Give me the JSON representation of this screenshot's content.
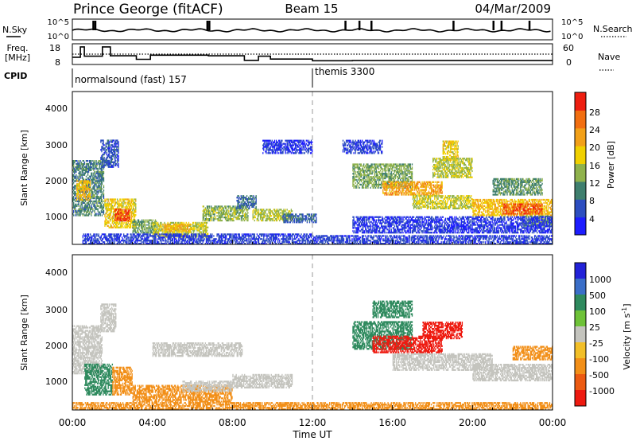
{
  "header": {
    "station": "Prince George (fitACF)",
    "beam": "Beam 15",
    "date": "04/Mar/2009"
  },
  "aux_panels": {
    "nsky": {
      "left_label": "N.Sky",
      "right_label": "N.Search",
      "left_ticks": [
        "10^5",
        "10^0"
      ],
      "right_ticks": [
        "10^5",
        "10^0"
      ],
      "baseline_log": 0.3,
      "spike_times_h": [
        1.0,
        1.1,
        6.7,
        6.8,
        13.6,
        14.3,
        14.9,
        19.0,
        21.0,
        21.4,
        22.8
      ]
    },
    "freq": {
      "left_label_line1": "Freq.",
      "left_label_line2": "[MHz]",
      "right_label": "Nave",
      "left_ticks": [
        "18",
        "8"
      ],
      "right_ticks": [
        "60",
        "0"
      ],
      "ylim_mhz": [
        8,
        18
      ],
      "freq_steps": [
        {
          "t": 0.0,
          "v": 11.5
        },
        {
          "t": 0.4,
          "v": 16.5
        },
        {
          "t": 0.6,
          "v": 12.0
        },
        {
          "t": 1.5,
          "v": 16.5
        },
        {
          "t": 1.9,
          "v": 12.2
        },
        {
          "t": 3.2,
          "v": 10.5
        },
        {
          "t": 3.9,
          "v": 12.5
        },
        {
          "t": 6.8,
          "v": 12.2
        },
        {
          "t": 8.6,
          "v": 10.0
        },
        {
          "t": 9.3,
          "v": 12.0
        },
        {
          "t": 9.9,
          "v": 10.6
        },
        {
          "t": 12.0,
          "v": 9.8
        },
        {
          "t": 14.0,
          "v": 9.9
        },
        {
          "t": 24.0,
          "v": 9.9
        }
      ],
      "nave_level": 30
    },
    "cpid": {
      "label": "CPID",
      "segments": [
        {
          "start_h": 0,
          "name": "normalsound (fast) 157"
        },
        {
          "start_h": 12,
          "name": "themis 3300"
        }
      ]
    }
  },
  "axes": {
    "y_label": "Slant Range [km]",
    "y_ticks": [
      "1000",
      "2000",
      "3000",
      "4000"
    ],
    "x_label": "Time UT",
    "x_ticks": [
      "00:00",
      "04:00",
      "08:00",
      "12:00",
      "16:00",
      "20:00",
      "00:00"
    ],
    "xlim_h": [
      0,
      24
    ],
    "ylim_km": [
      180,
      4600
    ]
  },
  "colorbars": {
    "power": {
      "label": "Power [dB]",
      "tick_labels": [
        "4",
        "8",
        "12",
        "16",
        "20",
        "24",
        "28"
      ],
      "colors": [
        "#1d1dff",
        "#2d4ec0",
        "#3f7f6e",
        "#8fb24c",
        "#f0d000",
        "#f2a018",
        "#f26e10",
        "#ee1e10"
      ]
    },
    "velocity": {
      "label_main": "Velocity [m s",
      "label_sup": "-1",
      "label_end": "]",
      "tick_labels": [
        "1000",
        "500",
        "100",
        "25",
        "-25",
        "-100",
        "-500",
        "-1000"
      ],
      "colors": [
        "#2222d8",
        "#3a6ec8",
        "#2e8a5e",
        "#6ec238",
        "#c4c4be",
        "#f2bf28",
        "#f28f18",
        "#ec5a12",
        "#ee1a10"
      ]
    }
  },
  "chart_data": [
    {
      "type": "heatmap",
      "title": "Power [dB]",
      "xlabel": "Time UT",
      "ylabel": "Slant Range [km]",
      "xlim": [
        0,
        24
      ],
      "ylim": [
        180,
        4600
      ],
      "x_unit": "hours UT",
      "series": [
        {
          "t0": 0.0,
          "t1": 1.6,
          "r0": 1000,
          "r1": 2600,
          "v": 10
        },
        {
          "t0": 0.2,
          "t1": 0.9,
          "r0": 1450,
          "r1": 2050,
          "v": 20
        },
        {
          "t0": 1.4,
          "t1": 2.3,
          "r0": 2400,
          "r1": 3200,
          "v": 6
        },
        {
          "t0": 1.6,
          "t1": 3.2,
          "r0": 650,
          "r1": 1500,
          "v": 18
        },
        {
          "t0": 2.1,
          "t1": 2.9,
          "r0": 850,
          "r1": 1200,
          "v": 28
        },
        {
          "t0": 3.0,
          "t1": 4.2,
          "r0": 500,
          "r1": 900,
          "v": 12
        },
        {
          "t0": 4.0,
          "t1": 6.8,
          "r0": 380,
          "r1": 850,
          "v": 16
        },
        {
          "t0": 4.5,
          "t1": 6.0,
          "r0": 550,
          "r1": 780,
          "v": 21
        },
        {
          "t0": 6.5,
          "t1": 8.8,
          "r0": 850,
          "r1": 1300,
          "v": 14
        },
        {
          "t0": 8.2,
          "t1": 9.2,
          "r0": 1200,
          "r1": 1600,
          "v": 8
        },
        {
          "t0": 9.0,
          "t1": 11.0,
          "r0": 850,
          "r1": 1200,
          "v": 15
        },
        {
          "t0": 10.5,
          "t1": 12.2,
          "r0": 800,
          "r1": 1050,
          "v": 8
        },
        {
          "t0": 0.5,
          "t1": 12.0,
          "r0": 180,
          "r1": 500,
          "v": 5
        },
        {
          "t0": 12.0,
          "t1": 24.0,
          "r0": 180,
          "r1": 450,
          "v": 5
        },
        {
          "t0": 14.0,
          "t1": 17.0,
          "r0": 1800,
          "r1": 2500,
          "v": 13
        },
        {
          "t0": 15.5,
          "t1": 18.5,
          "r0": 1600,
          "r1": 2000,
          "v": 22
        },
        {
          "t0": 17.0,
          "t1": 20.0,
          "r0": 1200,
          "r1": 1600,
          "v": 16
        },
        {
          "t0": 18.0,
          "t1": 20.0,
          "r0": 2100,
          "r1": 2700,
          "v": 15
        },
        {
          "t0": 18.5,
          "t1": 19.3,
          "r0": 2600,
          "r1": 3200,
          "v": 18
        },
        {
          "t0": 20.0,
          "t1": 24.0,
          "r0": 1000,
          "r1": 1500,
          "v": 20
        },
        {
          "t0": 21.5,
          "t1": 23.5,
          "r0": 1050,
          "r1": 1350,
          "v": 27
        },
        {
          "t0": 21.0,
          "t1": 23.5,
          "r0": 1600,
          "r1": 2100,
          "v": 11
        },
        {
          "t0": 22.5,
          "t1": 24.0,
          "r0": 700,
          "r1": 1000,
          "v": 12
        },
        {
          "t0": 13.5,
          "t1": 15.5,
          "r0": 2800,
          "r1": 3200,
          "v": 5
        },
        {
          "t0": 9.5,
          "t1": 12.0,
          "r0": 2800,
          "r1": 3200,
          "v": 4
        },
        {
          "t0": 14.0,
          "t1": 24.0,
          "r0": 500,
          "r1": 1000,
          "v": 4
        }
      ]
    },
    {
      "type": "heatmap",
      "title": "Velocity [m s-1]",
      "xlabel": "Time UT",
      "ylabel": "Slant Range [km]",
      "xlim": [
        0,
        24
      ],
      "ylim": [
        180,
        4600
      ],
      "x_unit": "hours UT",
      "series": [
        {
          "t0": 0.0,
          "t1": 1.5,
          "r0": 1200,
          "r1": 2600,
          "v": 0
        },
        {
          "t0": 0.6,
          "t1": 2.0,
          "r0": 600,
          "r1": 1500,
          "v": 150
        },
        {
          "t0": 1.4,
          "t1": 2.2,
          "r0": 2400,
          "r1": 3200,
          "v": 0
        },
        {
          "t0": 2.0,
          "t1": 3.0,
          "r0": 600,
          "r1": 1400,
          "v": -150
        },
        {
          "t0": 3.0,
          "t1": 8.0,
          "r0": 400,
          "r1": 900,
          "v": -150
        },
        {
          "t0": 5.5,
          "t1": 8.0,
          "r0": 700,
          "r1": 1000,
          "v": 0
        },
        {
          "t0": 8.0,
          "t1": 11.0,
          "r0": 800,
          "r1": 1200,
          "v": 0
        },
        {
          "t0": 4.0,
          "t1": 8.5,
          "r0": 1700,
          "r1": 2100,
          "v": 0
        },
        {
          "t0": 0.0,
          "t1": 24.0,
          "r0": 180,
          "r1": 420,
          "v": -150
        },
        {
          "t0": 14.0,
          "t1": 17.0,
          "r0": 1900,
          "r1": 2700,
          "v": 150
        },
        {
          "t0": 15.0,
          "t1": 18.5,
          "r0": 1800,
          "r1": 2300,
          "v": -700
        },
        {
          "t0": 17.5,
          "t1": 19.5,
          "r0": 2200,
          "r1": 2700,
          "v": -400
        },
        {
          "t0": 16.0,
          "t1": 21.0,
          "r0": 1300,
          "r1": 1800,
          "v": 0
        },
        {
          "t0": 20.0,
          "t1": 24.0,
          "r0": 1000,
          "r1": 1500,
          "v": 0
        },
        {
          "t0": 15.0,
          "t1": 17.0,
          "r0": 2800,
          "r1": 3300,
          "v": 150
        },
        {
          "t0": 22.0,
          "t1": 24.0,
          "r0": 1600,
          "r1": 2000,
          "v": -150
        }
      ]
    }
  ]
}
